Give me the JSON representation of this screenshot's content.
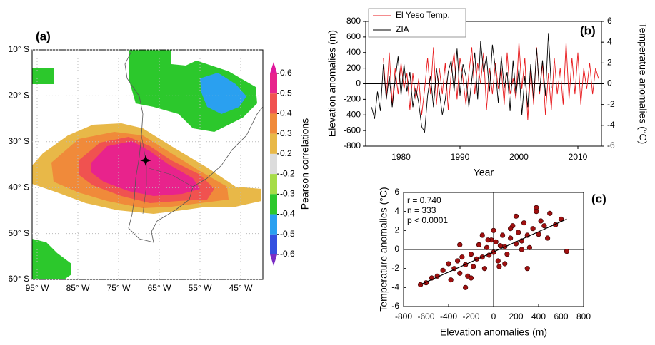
{
  "chart_data": [
    {
      "type": "map",
      "panel_label": "(a)",
      "lat_labels": [
        "10° S",
        "20° S",
        "30° S",
        "40° S",
        "50° S",
        "60° S"
      ],
      "lon_labels": [
        "95° W",
        "85° W",
        "75° W",
        "65° W",
        "55° W",
        "45° W"
      ],
      "colorbar": {
        "label": "Pearson correlations",
        "ticks": [
          0.6,
          0.5,
          0.4,
          0.3,
          0.2,
          -0.2,
          -0.3,
          -0.4,
          -0.5,
          -0.6
        ],
        "colors": [
          "#e0189c",
          "#e8238c",
          "#f05250",
          "#f08a3a",
          "#e8b848",
          "#dcdcdc",
          "#a6dc48",
          "#2cc82c",
          "#2aa0f0",
          "#3450e0",
          "#7a2cc4"
        ]
      }
    },
    {
      "type": "line",
      "panel_label": "(b)",
      "xlabel": "Year",
      "ylabel": "Elevation anomalies (m)",
      "y2label": "Temperatue anomalies (°C)",
      "x": [
        1975,
        1975.5,
        1976,
        1976.5,
        1977,
        1977.5,
        1978,
        1978.5,
        1979,
        1979.5,
        1980,
        1980.5,
        1981,
        1981.5,
        1982,
        1982.5,
        1983,
        1983.5,
        1984,
        1984.5,
        1985,
        1985.5,
        1986,
        1986.5,
        1987,
        1987.5,
        1988,
        1988.5,
        1989,
        1989.5,
        1990,
        1990.5,
        1991,
        1991.5,
        1992,
        1992.5,
        1993,
        1993.5,
        1994,
        1994.5,
        1995,
        1995.5,
        1996,
        1996.5,
        1997,
        1997.5,
        1998,
        1998.5,
        1999,
        1999.5,
        2000,
        2000.5,
        2001,
        2001.5,
        2002,
        2002.5,
        2003,
        2003.5,
        2004,
        2004.5,
        2005,
        2005.5,
        2006,
        2006.5,
        2007,
        2007.5,
        2008,
        2008.5,
        2009,
        2009.5,
        2010,
        2010.5,
        2011,
        2011.5,
        2012,
        2012.5,
        2013,
        2013.5
      ],
      "xlim": [
        1974,
        2014
      ],
      "xticks": [
        1980,
        1990,
        2000,
        2010
      ],
      "ylim": [
        -800,
        800
      ],
      "yticks": [
        -800,
        -600,
        -400,
        -200,
        0,
        200,
        400,
        600,
        800
      ],
      "y2lim": [
        -6,
        6
      ],
      "y2ticks": [
        -6,
        -4,
        -2,
        0,
        2,
        4,
        6
      ],
      "zero_line": true,
      "legend": "upper left",
      "series": [
        {
          "name": "El Yeso Temp.",
          "color": "#e8191c",
          "axis": "y2",
          "values": [
            null,
            null,
            null,
            null,
            2.5,
            -1.5,
            3,
            -2,
            1.5,
            -1,
            2,
            -0.5,
            1,
            -2.5,
            1,
            -1.5,
            0.5,
            -3,
            -0.5,
            2.5,
            -1,
            3.5,
            -2,
            1.5,
            -1,
            2,
            -2.5,
            1,
            3,
            -1.5,
            2.5,
            0.5,
            -2,
            1,
            3.5,
            -1,
            2,
            0,
            3,
            -2.5,
            1.5,
            -1,
            2,
            -0.5,
            1.5,
            -2,
            3,
            -1,
            0.5,
            -1.5,
            4,
            -0.5,
            2.5,
            -3.5,
            1.5,
            -2,
            3.5,
            -1,
            2,
            -3,
            1,
            -2.5,
            2.5,
            -1,
            1.5,
            -2,
            4,
            -1.5,
            2.5,
            -1,
            3,
            -2,
            1.5,
            -0.5,
            2,
            -1,
            1.5,
            0.5
          ]
        },
        {
          "name": "ZIA",
          "color": "#000000",
          "values": [
            -300,
            -450,
            -100,
            -350,
            250,
            -200,
            100,
            -300,
            50,
            350,
            -150,
            250,
            -100,
            150,
            -300,
            -50,
            -250,
            -550,
            -620,
            -150,
            100,
            -300,
            200,
            -100,
            -400,
            -200,
            150,
            300,
            -100,
            450,
            -150,
            250,
            100,
            -300,
            50,
            400,
            -200,
            550,
            150,
            350,
            -100,
            500,
            200,
            -250,
            350,
            -50,
            150,
            -350,
            300,
            -150,
            200,
            -400,
            100,
            -300,
            250,
            -200,
            450,
            -100,
            300,
            -150,
            650,
            -50,
            null,
            null,
            null,
            null,
            null,
            null,
            null,
            null,
            null,
            null,
            null,
            null,
            null,
            null,
            null,
            null
          ]
        }
      ]
    },
    {
      "type": "scatter",
      "panel_label": "(c)",
      "xlabel": "Elevation anomalies (m)",
      "ylabel": "Temperature anomalies (°C)",
      "x": [
        -650,
        -600,
        -550,
        -500,
        -450,
        -400,
        -380,
        -350,
        -320,
        -300,
        -280,
        -250,
        -230,
        -200,
        -180,
        -150,
        -130,
        -100,
        -80,
        -60,
        -40,
        -20,
        0,
        20,
        40,
        60,
        80,
        100,
        120,
        150,
        170,
        200,
        220,
        250,
        270,
        300,
        320,
        350,
        380,
        400,
        420,
        450,
        480,
        500,
        550,
        600,
        650,
        -300,
        -200,
        -100,
        0,
        100,
        200,
        300,
        -250,
        -50,
        50,
        150,
        250,
        380
      ],
      "y": [
        -3.7,
        -3.5,
        -3,
        -2.8,
        -2.2,
        -1.5,
        -3.2,
        -2,
        -1.2,
        -2.5,
        -0.8,
        -1.6,
        -2.8,
        -0.5,
        -1.8,
        -1,
        0.5,
        -0.8,
        -2,
        0.2,
        -0.6,
        1,
        -0.3,
        0.8,
        -1.2,
        0.4,
        1.5,
        0.3,
        -0.5,
        1.2,
        2.5,
        0.6,
        1.8,
        0.9,
        2.8,
        1.5,
        0.2,
        2.2,
        4.4,
        1.6,
        3,
        2.5,
        1.2,
        3.8,
        2.6,
        3.2,
        -0.2,
        0.5,
        -3,
        1.5,
        2,
        -1.5,
        3.5,
        -2,
        -4,
        1,
        -1.8,
        2.2,
        0,
        4
      ],
      "color": "#a01010",
      "xlim": [
        -800,
        800
      ],
      "xticks": [
        -800,
        -600,
        -400,
        -200,
        0,
        200,
        400,
        600,
        800
      ],
      "ylim": [
        -6,
        6
      ],
      "yticks": [
        -6,
        -4,
        -2,
        0,
        2,
        4,
        6
      ],
      "zero_lines": true,
      "annotations": [
        "r = 0.740",
        "n = 333",
        "p < 0.0001"
      ],
      "trend": {
        "x": [
          -650,
          650
        ],
        "y": [
          -3.7,
          3.2
        ]
      }
    }
  ]
}
